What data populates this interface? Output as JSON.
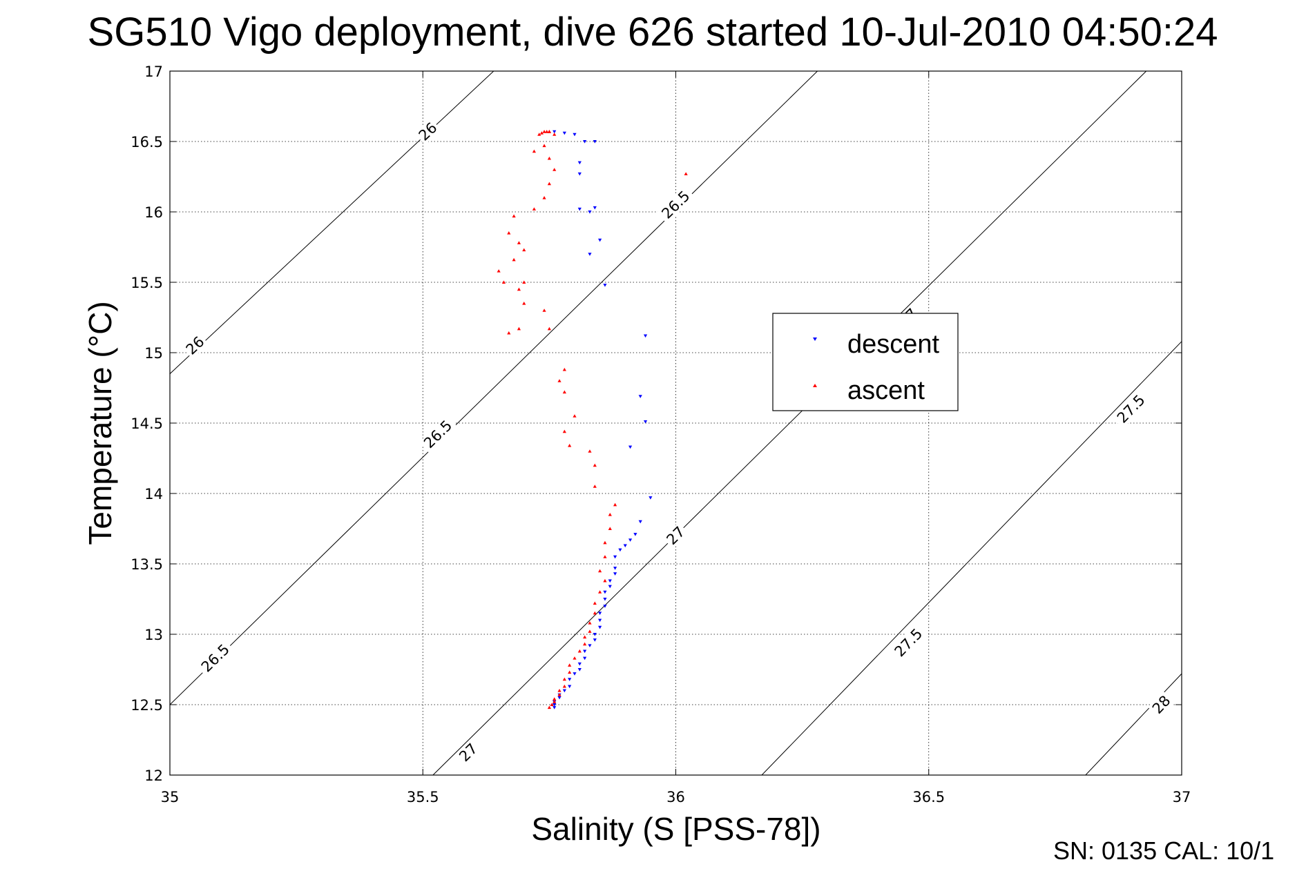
{
  "chart_data": {
    "type": "scatter",
    "title": "SG510 Vigo deployment, dive 626 started 10-Jul-2010 04:50:24",
    "xlabel": "Salinity (S [PSS-78])",
    "ylabel": "Temperature (°C)",
    "xlim": [
      35,
      37
    ],
    "ylim": [
      12,
      17
    ],
    "xticks": [
      35,
      35.5,
      36,
      36.5,
      37
    ],
    "xtick_labels": [
      "35",
      "35.5",
      "36",
      "36.5",
      "37"
    ],
    "yticks": [
      12,
      12.5,
      13,
      13.5,
      14,
      14.5,
      15,
      15.5,
      16,
      16.5,
      17
    ],
    "ytick_labels": [
      "12",
      "12.5",
      "13",
      "13.5",
      "14",
      "14.5",
      "15",
      "15.5",
      "16",
      "16.5",
      "17"
    ],
    "grid": true,
    "legend_position": "right",
    "footer": "SN: 0135  CAL: 10/1",
    "density_contours": [
      {
        "label": "26",
        "points": [
          [
            35.0,
            14.85
          ],
          [
            35.64,
            17.0
          ]
        ],
        "label_at": [
          [
            35.05,
            15.05
          ],
          [
            35.51,
            16.57
          ]
        ]
      },
      {
        "label": "26.5",
        "points": [
          [
            35.0,
            12.5
          ],
          [
            36.28,
            17.0
          ]
        ],
        "label_at": [
          [
            35.09,
            12.83
          ],
          [
            35.53,
            14.42
          ],
          [
            36.0,
            16.05
          ]
        ]
      },
      {
        "label": "27",
        "points": [
          [
            35.52,
            12.0
          ],
          [
            36.93,
            17.0
          ]
        ],
        "label_at": [
          [
            35.59,
            12.16
          ],
          [
            36.0,
            13.7
          ],
          [
            36.46,
            15.25
          ]
        ]
      },
      {
        "label": "27.5",
        "points": [
          [
            36.17,
            12.0
          ],
          [
            37.0,
            15.08
          ]
        ],
        "label_at": [
          [
            36.46,
            12.94
          ],
          [
            36.9,
            14.6
          ]
        ]
      },
      {
        "label": "28",
        "points": [
          [
            36.81,
            12.0
          ],
          [
            37.0,
            12.72
          ]
        ],
        "label_at": [
          [
            36.96,
            12.5
          ]
        ]
      }
    ],
    "series": [
      {
        "name": "descent",
        "color": "#0000ff",
        "marker": "triangle-down",
        "x": [
          35.76,
          35.78,
          35.8,
          35.82,
          35.81,
          35.81,
          35.84,
          35.81,
          35.83,
          35.84,
          35.85,
          35.83,
          35.86,
          35.94,
          35.93,
          35.94,
          35.91,
          35.95,
          35.93,
          35.92,
          35.91,
          35.9,
          35.89,
          35.88,
          35.88,
          35.88,
          35.87,
          35.87,
          35.86,
          35.86,
          35.86,
          35.85,
          35.85,
          35.85,
          35.84,
          35.84,
          35.83,
          35.82,
          35.82,
          35.81,
          35.81,
          35.8,
          35.79,
          35.79,
          35.78,
          35.77,
          35.77,
          35.76,
          35.76,
          35.76
        ],
        "y": [
          16.57,
          16.56,
          16.55,
          16.5,
          16.35,
          16.27,
          16.5,
          16.02,
          16.0,
          16.03,
          15.8,
          15.7,
          15.48,
          15.12,
          14.69,
          14.51,
          14.33,
          13.97,
          13.8,
          13.71,
          13.67,
          13.63,
          13.6,
          13.55,
          13.47,
          13.43,
          13.38,
          13.34,
          13.3,
          13.25,
          13.2,
          13.15,
          13.1,
          13.05,
          13.0,
          12.96,
          12.92,
          12.88,
          12.83,
          12.79,
          12.75,
          12.72,
          12.68,
          12.63,
          12.6,
          12.57,
          12.55,
          12.52,
          12.5,
          12.48
        ]
      },
      {
        "name": "ascent",
        "color": "#ff0000",
        "marker": "triangle-up",
        "x": [
          35.73,
          35.735,
          35.74,
          35.745,
          35.75,
          35.75,
          35.76,
          35.74,
          35.72,
          35.75,
          35.76,
          35.75,
          35.74,
          35.72,
          35.68,
          35.67,
          35.69,
          35.7,
          35.68,
          35.65,
          35.66,
          35.7,
          35.69,
          35.7,
          35.67,
          35.74,
          35.69,
          35.75,
          35.78,
          35.77,
          35.78,
          35.8,
          35.78,
          35.79,
          35.83,
          35.84,
          35.84,
          35.88,
          35.87,
          35.87,
          35.86,
          35.86,
          35.85,
          35.86,
          35.85,
          35.84,
          35.84,
          35.83,
          35.83,
          35.82,
          35.82,
          35.81,
          35.8,
          35.79,
          35.79,
          35.78,
          35.78,
          35.77,
          35.77,
          35.76,
          35.76,
          35.755,
          35.75,
          36.02
        ],
        "y": [
          16.55,
          16.56,
          16.57,
          16.57,
          16.57,
          16.57,
          16.55,
          16.47,
          16.43,
          16.38,
          16.3,
          16.2,
          16.1,
          16.02,
          15.97,
          15.85,
          15.78,
          15.73,
          15.66,
          15.58,
          15.5,
          15.5,
          15.45,
          15.35,
          15.14,
          15.3,
          15.17,
          15.17,
          14.88,
          14.8,
          14.72,
          14.55,
          14.44,
          14.34,
          14.3,
          14.2,
          14.05,
          13.92,
          13.85,
          13.75,
          13.65,
          13.55,
          13.45,
          13.38,
          13.3,
          13.22,
          13.15,
          13.08,
          13.02,
          12.98,
          12.93,
          12.88,
          12.83,
          12.78,
          12.73,
          12.68,
          12.63,
          12.6,
          12.57,
          12.54,
          12.52,
          12.5,
          12.48,
          16.27
        ]
      }
    ]
  }
}
